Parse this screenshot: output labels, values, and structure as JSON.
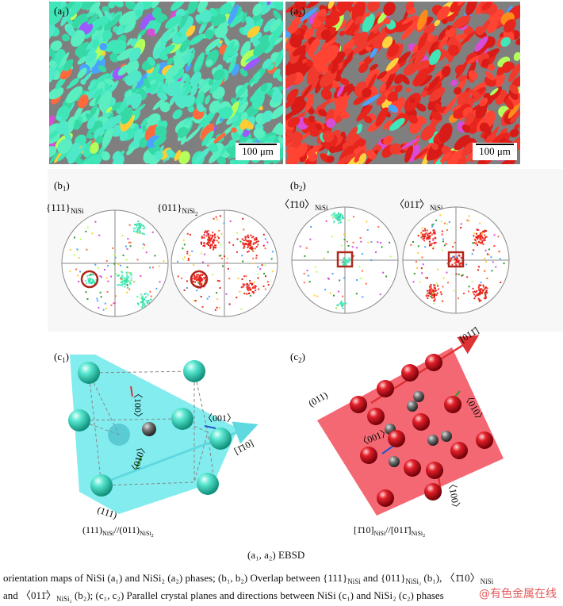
{
  "panels": {
    "a1": {
      "label": "(a",
      "sub": "1",
      "close": ")",
      "scalebar": "100 μm"
    },
    "a2": {
      "label": "(a",
      "sub": "2",
      "close": ")",
      "scalebar": "100 μm"
    },
    "b1": {
      "label": "(b",
      "sub": "1",
      "close": ")",
      "pf1_title": "{111}",
      "pf1_sub": "NiSi",
      "pf2_title": "{011}",
      "pf2_sub": "NiSi",
      "pf2_sub2": "2"
    },
    "b2": {
      "label": "(b",
      "sub": "2",
      "close": ")",
      "pf1_title": "〈1̄10〉",
      "pf1_sub": "NiSi",
      "pf2_title": "〈011̄〉",
      "pf2_sub": "NiSi",
      "pf2_sub2": "2"
    },
    "c1": {
      "label": "(c",
      "sub": "1",
      "close": ")",
      "dir_100": "〈100〉",
      "dir_001": "〈001〉",
      "dir_010": "〈010〉",
      "dir_m110": "[1̄10]",
      "plane_111": "(111)",
      "relation_a": "(111)",
      "relation_a_sub": "NiSi",
      "relation_b": "//(011)",
      "relation_b_sub": "NiSi",
      "relation_b_sub2": "2"
    },
    "c2": {
      "label": "(c",
      "sub": "2",
      "close": ")",
      "dir_011m": "[011̄]",
      "plane_011": "(011)",
      "dir_010": "〈010〉",
      "dir_001": "〈001〉",
      "dir_100": "〈100〉",
      "relation_a": "[1̄10]",
      "relation_a_sub": "NiSi",
      "relation_b": "//[011̄]",
      "relation_b_sub": "NiSi",
      "relation_b_sub2": "2"
    }
  },
  "caption": {
    "ebsd": "(a₁, a₂) EBSD",
    "line1": "orientation maps of NiSi (a₁) and NiSi₂ (a₂) phases; (b₁, b₂) Overlap between {111}",
    "line1_sub1": "NiSi",
    "line1_mid": " and  {011}",
    "line1_sub2": "NiSi₂",
    "line1_mid2": " (b₁),  〈1̄10〉",
    "line1_sub3": "NiSi",
    "line2_start": "and  〈011̄〉",
    "line2_sub": "NiSi₂",
    "line2_rest": " (b₂); (c₁, c₂) Parallel crystal planes and directions between NiSi (c₁) and NiSi₂ (c₂) phases"
  },
  "watermark": "@有色金属在线",
  "colors": {
    "nisi_map": "#3ee6b8",
    "nisi2_map": "#e8251c",
    "gray_bg": "#7f7f7f",
    "cyan_plane": "#59e6ea",
    "red_plane": "#f24d5c",
    "frame_red": "#b3261e"
  }
}
